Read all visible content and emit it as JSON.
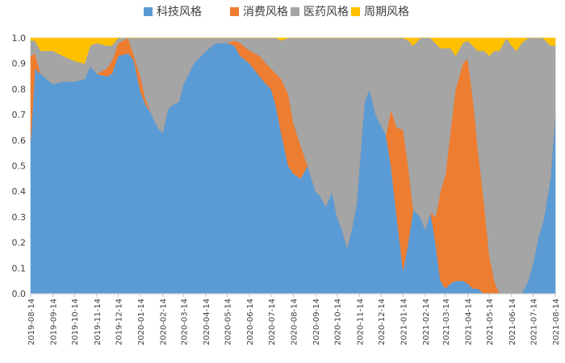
{
  "chart_data": {
    "type": "area",
    "stacked": true,
    "normalized": true,
    "title": "",
    "xlabel": "",
    "ylabel": "",
    "ylim": [
      0,
      1
    ],
    "yticks": [
      "0.0",
      "0.1",
      "0.2",
      "0.3",
      "0.4",
      "0.5",
      "0.6",
      "0.7",
      "0.8",
      "0.9",
      "1.0"
    ],
    "xticks": [
      "2019-08-14",
      "2019-09-14",
      "2019-10-14",
      "2019-11-14",
      "2019-12-14",
      "2020-01-14",
      "2020-02-14",
      "2020-03-14",
      "2020-04-14",
      "2020-05-14",
      "2020-06-14",
      "2020-07-14",
      "2020-08-14",
      "2020-09-14",
      "2020-10-14",
      "2020-11-14",
      "2020-12-14",
      "2021-01-14",
      "2021-02-14",
      "2021-03-14",
      "2021-04-14",
      "2021-05-14",
      "2021-06-14",
      "2021-07-14",
      "2021-08-14"
    ],
    "legend_position": "top",
    "grid": false,
    "x": [
      "2019-08-14",
      "2019-08-20",
      "2019-08-28",
      "2019-09-14",
      "2019-09-28",
      "2019-10-14",
      "2019-10-28",
      "2019-11-05",
      "2019-11-14",
      "2019-11-28",
      "2019-12-05",
      "2019-12-14",
      "2019-12-28",
      "2020-01-05",
      "2020-01-14",
      "2020-01-21",
      "2020-01-28",
      "2020-02-07",
      "2020-02-14",
      "2020-02-21",
      "2020-02-28",
      "2020-03-07",
      "2020-03-14",
      "2020-03-28",
      "2020-04-14",
      "2020-04-28",
      "2020-05-14",
      "2020-05-24",
      "2020-06-01",
      "2020-06-14",
      "2020-06-28",
      "2020-07-07",
      "2020-07-14",
      "2020-07-21",
      "2020-07-28",
      "2020-08-07",
      "2020-08-14",
      "2020-08-24",
      "2020-09-03",
      "2020-09-14",
      "2020-09-21",
      "2020-09-28",
      "2020-10-07",
      "2020-10-14",
      "2020-10-21",
      "2020-10-28",
      "2020-11-03",
      "2020-11-10",
      "2020-11-14",
      "2020-11-21",
      "2020-11-28",
      "2020-12-07",
      "2020-12-14",
      "2020-12-21",
      "2020-12-28",
      "2021-01-05",
      "2021-01-14",
      "2021-01-21",
      "2021-01-28",
      "2021-02-07",
      "2021-02-14",
      "2021-02-21",
      "2021-02-28",
      "2021-03-07",
      "2021-03-14",
      "2021-03-21",
      "2021-03-28",
      "2021-04-07",
      "2021-04-14",
      "2021-04-21",
      "2021-04-28",
      "2021-05-07",
      "2021-05-14",
      "2021-05-21",
      "2021-05-28",
      "2021-06-07",
      "2021-06-14",
      "2021-06-21",
      "2021-06-28",
      "2021-07-07",
      "2021-07-14",
      "2021-07-21",
      "2021-07-28",
      "2021-08-07",
      "2021-08-14"
    ],
    "series": [
      {
        "name": "科技风格",
        "color": "#5b9bd5",
        "values": [
          0.6,
          0.88,
          0.86,
          0.82,
          0.83,
          0.83,
          0.84,
          0.89,
          0.86,
          0.85,
          0.86,
          0.93,
          0.94,
          0.91,
          0.79,
          0.74,
          0.71,
          0.65,
          0.63,
          0.72,
          0.74,
          0.75,
          0.82,
          0.9,
          0.95,
          0.98,
          0.98,
          0.97,
          0.93,
          0.9,
          0.85,
          0.82,
          0.8,
          0.73,
          0.63,
          0.5,
          0.47,
          0.45,
          0.5,
          0.4,
          0.38,
          0.34,
          0.4,
          0.3,
          0.25,
          0.18,
          0.25,
          0.35,
          0.5,
          0.75,
          0.8,
          0.7,
          0.66,
          0.62,
          0.5,
          0.3,
          0.09,
          0.2,
          0.33,
          0.3,
          0.25,
          0.32,
          0.2,
          0.05,
          0.02,
          0.04,
          0.05,
          0.05,
          0.04,
          0.02,
          0.02,
          0.0,
          0.0,
          0.0,
          0.0,
          0.0,
          0.0,
          0.0,
          0.0,
          0.05,
          0.12,
          0.22,
          0.28,
          0.45,
          0.7
        ]
      },
      {
        "name": "消费风格",
        "color": "#ed7d31",
        "values": [
          0.33,
          0.06,
          0.0,
          0.0,
          0.0,
          0.0,
          0.0,
          0.0,
          0.0,
          0.03,
          0.05,
          0.05,
          0.06,
          0.02,
          0.06,
          0.02,
          0.0,
          0.0,
          0.0,
          0.0,
          0.0,
          0.0,
          0.0,
          0.0,
          0.0,
          0.0,
          0.0,
          0.02,
          0.05,
          0.05,
          0.08,
          0.08,
          0.08,
          0.13,
          0.21,
          0.28,
          0.2,
          0.13,
          0.0,
          0.0,
          0.0,
          0.0,
          0.0,
          0.0,
          0.0,
          0.0,
          0.0,
          0.0,
          0.0,
          0.0,
          0.0,
          0.0,
          0.0,
          0.0,
          0.22,
          0.35,
          0.55,
          0.3,
          0.0,
          0.0,
          0.0,
          0.0,
          0.1,
          0.35,
          0.45,
          0.6,
          0.75,
          0.85,
          0.88,
          0.75,
          0.55,
          0.35,
          0.15,
          0.05,
          0.0,
          0.0,
          0.0,
          0.0,
          0.0,
          0.0,
          0.0,
          0.0,
          0.0,
          0.0,
          0.0
        ]
      },
      {
        "name": "医药风格",
        "color": "#a5a5a5",
        "values": [
          0.06,
          0.05,
          0.09,
          0.13,
          0.1,
          0.08,
          0.06,
          0.08,
          0.12,
          0.09,
          0.06,
          0.02,
          0.0,
          0.07,
          0.15,
          0.24,
          0.29,
          0.35,
          0.37,
          0.28,
          0.26,
          0.25,
          0.18,
          0.1,
          0.05,
          0.02,
          0.02,
          0.01,
          0.02,
          0.05,
          0.07,
          0.1,
          0.12,
          0.14,
          0.15,
          0.22,
          0.33,
          0.42,
          0.5,
          0.6,
          0.62,
          0.66,
          0.6,
          0.7,
          0.75,
          0.82,
          0.75,
          0.65,
          0.5,
          0.25,
          0.2,
          0.3,
          0.34,
          0.38,
          0.28,
          0.35,
          0.36,
          0.49,
          0.64,
          0.7,
          0.75,
          0.68,
          0.68,
          0.56,
          0.49,
          0.32,
          0.13,
          0.08,
          0.07,
          0.2,
          0.38,
          0.6,
          0.78,
          0.9,
          0.95,
          1.0,
          0.97,
          0.95,
          0.98,
          0.95,
          0.88,
          0.78,
          0.72,
          0.52,
          0.27
        ]
      },
      {
        "name": "周期风格",
        "color": "#ffc000",
        "values": [
          0.01,
          0.01,
          0.05,
          0.05,
          0.07,
          0.09,
          0.1,
          0.03,
          0.02,
          0.03,
          0.03,
          0.0,
          0.0,
          0.0,
          0.0,
          0.0,
          0.0,
          0.0,
          0.0,
          0.0,
          0.0,
          0.0,
          0.0,
          0.0,
          0.0,
          0.0,
          0.0,
          0.0,
          0.0,
          0.0,
          0.0,
          0.0,
          0.0,
          0.0,
          0.01,
          0.0,
          0.0,
          0.0,
          0.0,
          0.0,
          0.0,
          0.0,
          0.0,
          0.0,
          0.0,
          0.0,
          0.0,
          0.0,
          0.0,
          0.0,
          0.0,
          0.0,
          0.0,
          0.0,
          0.0,
          0.0,
          0.0,
          0.01,
          0.03,
          0.0,
          0.0,
          0.0,
          0.02,
          0.04,
          0.04,
          0.04,
          0.07,
          0.02,
          0.01,
          0.03,
          0.05,
          0.05,
          0.07,
          0.05,
          0.05,
          0.0,
          0.03,
          0.05,
          0.02,
          0.0,
          0.0,
          0.0,
          0.0,
          0.03,
          0.03
        ]
      }
    ]
  }
}
